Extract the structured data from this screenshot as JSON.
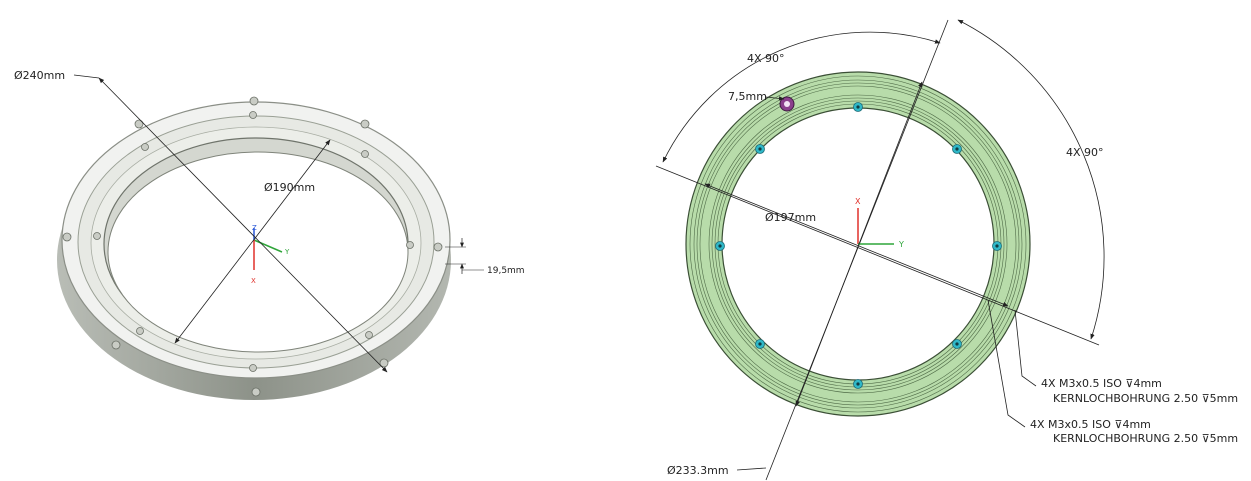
{
  "left_view": {
    "outer_diameter": "Ø240mm",
    "inner_diameter": "Ø190mm",
    "height": "19,5mm",
    "triad": {
      "z": "Z",
      "y": "Y",
      "x": "X"
    }
  },
  "right_view": {
    "angle_top": "4X 90°",
    "angle_right": "4X 90°",
    "hole_dim": "7,5mm",
    "inner_diameter": "Ø197mm",
    "outer_diameter": "Ø233.3mm",
    "triad": {
      "x": "X",
      "y": "Y"
    },
    "note_1": {
      "line1": "4X M3x0.5 ISO ⊽4mm",
      "line2": "KERNLOCHBOHRUNG 2.50 ⊽5mm"
    },
    "note_2": {
      "line1": "4X M3x0.5 ISO ⊽4mm",
      "line2": "KERNLOCHBOHRUNG 2.50 ⊽5mm"
    }
  },
  "colors": {
    "ring_gray_face": "#f1f2f0",
    "ring_gray_side": "#9fa59b",
    "ring_green": "#b8dcaa",
    "ring_green_line": "#4f6b47",
    "hole_cyan": "#2fb8c8",
    "marker_purple": "#8a3f8c",
    "axis_red": "#e0302a",
    "axis_green": "#2fa53a",
    "axis_blue": "#2b58d8"
  }
}
